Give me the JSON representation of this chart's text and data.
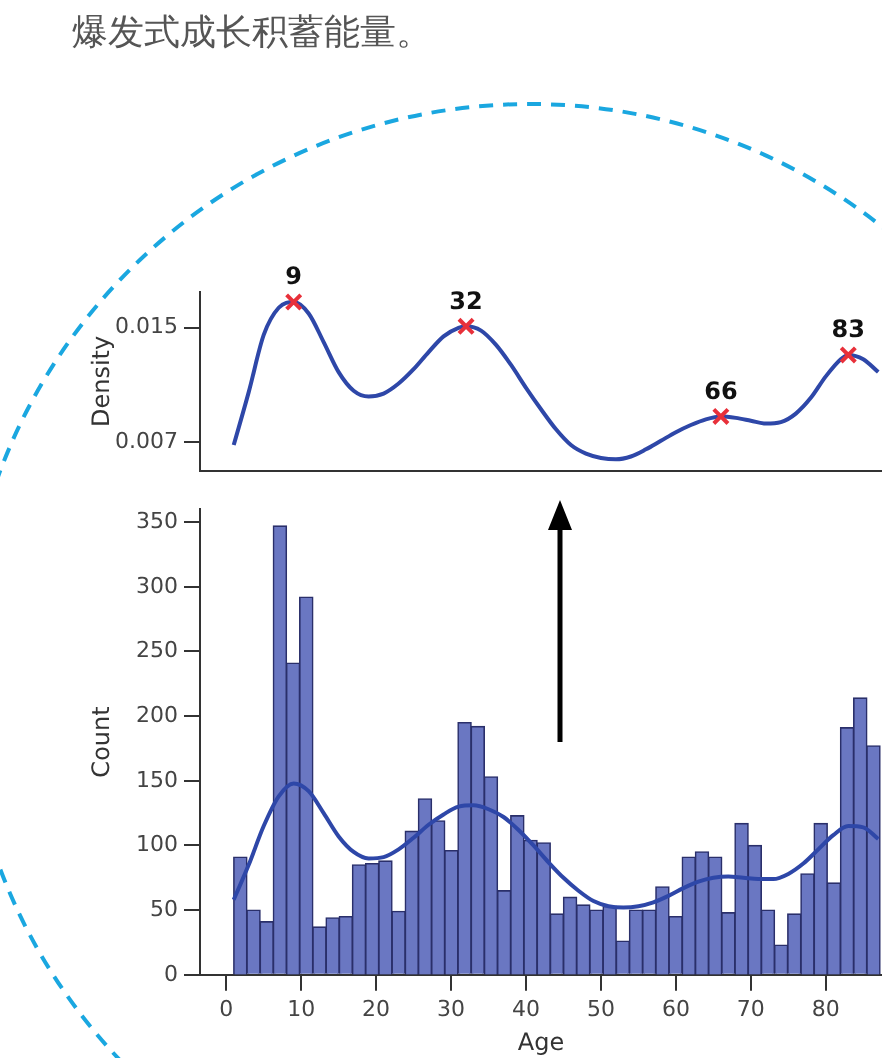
{
  "chart_data": [
    {
      "type": "line",
      "ylabel": "Density",
      "xlim": [
        -3.5,
        87.5
      ],
      "ylim": [
        0.005,
        0.0175
      ],
      "yticks": [
        0.007,
        0.015
      ],
      "tick_labels": "y",
      "grid": false,
      "legend": false,
      "annotations": [
        "爆发式成长积蓄能量。",
        {
          "text": "9",
          "x": 9,
          "y": 0.0168
        },
        {
          "text": "32",
          "x": 32,
          "y": 0.0151
        },
        {
          "text": "66",
          "x": 66,
          "y": 0.0088
        },
        {
          "text": "83",
          "x": 83,
          "y": 0.0131
        }
      ],
      "series": [
        {
          "color": "#2e47a8",
          "marker": "none",
          "x": [
            1,
            3,
            5,
            7,
            9,
            11,
            13,
            15,
            17,
            19,
            21,
            23,
            25,
            27,
            29,
            31,
            32,
            34,
            36,
            38,
            40,
            42,
            44,
            46,
            48,
            50,
            52,
            54,
            56,
            58,
            60,
            62,
            64,
            66,
            68,
            70,
            72,
            74,
            76,
            78,
            80,
            82,
            83,
            85,
            87
          ],
          "values": [
            0.0068,
            0.0105,
            0.0145,
            0.0164,
            0.0168,
            0.016,
            0.014,
            0.0119,
            0.0106,
            0.0102,
            0.0104,
            0.0111,
            0.0121,
            0.0133,
            0.0144,
            0.015,
            0.0151,
            0.0148,
            0.0138,
            0.0124,
            0.0108,
            0.0093,
            0.0079,
            0.0068,
            0.0062,
            0.0059,
            0.0058,
            0.006,
            0.0065,
            0.0071,
            0.0077,
            0.0082,
            0.0086,
            0.0088,
            0.0087,
            0.0085,
            0.0083,
            0.0084,
            0.009,
            0.0101,
            0.0116,
            0.0128,
            0.0131,
            0.0128,
            0.0119
          ]
        },
        {
          "type": "scatter",
          "color": "#e8303a",
          "marker": "cross",
          "x": [
            9,
            32,
            66,
            83
          ],
          "values": [
            0.0168,
            0.0151,
            0.0088,
            0.0131
          ]
        }
      ]
    },
    {
      "type": "histogram",
      "xlabel": "Age",
      "ylabel": "Count",
      "xlim": [
        -3.5,
        87.5
      ],
      "xticks": [
        0,
        10,
        20,
        30,
        40,
        50,
        60,
        70,
        80
      ],
      "ylim": [
        0,
        360
      ],
      "yticks": [
        0,
        50,
        100,
        150,
        200,
        250,
        300,
        350
      ],
      "grid": false,
      "legend": false,
      "bins": [
        1,
        2.76,
        4.52,
        6.28,
        8.04,
        9.8,
        11.56,
        13.32,
        15.08,
        16.84,
        18.6,
        20.36,
        22.12,
        23.88,
        25.64,
        27.4,
        29.16,
        30.92,
        32.68,
        34.44,
        36.2,
        37.96,
        39.72,
        41.48,
        43.24,
        45,
        46.76,
        48.52,
        50.28,
        52.04,
        53.8,
        55.56,
        57.32,
        59.08,
        60.84,
        62.6,
        64.36,
        66.12,
        67.88,
        69.64,
        71.4,
        73.16,
        74.92,
        76.68,
        78.44,
        80.2,
        81.96,
        83.72,
        85.48,
        87.24
      ],
      "series": [
        {
          "color": "#6a77c2",
          "values": [
            91,
            50,
            41,
            347,
            241,
            292,
            37,
            44,
            45,
            85,
            86,
            88,
            49,
            111,
            136,
            119,
            96,
            195,
            192,
            153,
            65,
            123,
            104,
            102,
            47,
            60,
            54,
            50,
            53,
            26,
            50,
            50,
            68,
            45,
            91,
            95,
            91,
            48,
            117,
            100,
            50,
            23,
            47,
            78,
            117,
            71,
            191,
            214,
            177
          ]
        },
        {
          "type": "line",
          "color": "#2e47a8",
          "marker": "none",
          "x": [
            1,
            3,
            5,
            7,
            9,
            11,
            13,
            15,
            17,
            19,
            21,
            23,
            25,
            27,
            29,
            31,
            33,
            35,
            37,
            39,
            41,
            43,
            45,
            47,
            49,
            51,
            53,
            55,
            57,
            59,
            61,
            63,
            65,
            67,
            69,
            71,
            73,
            75,
            77,
            79,
            81,
            83,
            85,
            87
          ],
          "values": [
            58,
            85,
            115,
            138,
            148,
            142,
            125,
            107,
            95,
            90,
            91,
            97,
            106,
            116,
            124,
            130,
            131,
            128,
            122,
            112,
            100,
            87,
            75,
            65,
            57,
            53,
            52,
            53,
            56,
            61,
            67,
            72,
            75,
            76,
            75,
            74,
            74,
            78,
            86,
            97,
            108,
            115,
            114,
            105
          ]
        }
      ]
    }
  ]
}
